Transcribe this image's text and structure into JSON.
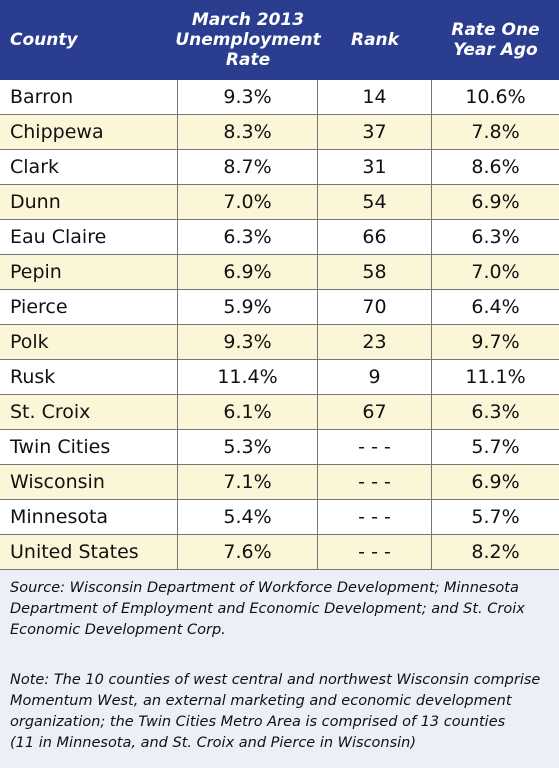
{
  "header": [
    [
      "County"
    ],
    [
      "March 2013",
      "Unemployment",
      "Rate"
    ],
    [
      "Rank"
    ],
    [
      "Rate One",
      "Year Ago"
    ]
  ],
  "rows": [
    [
      "Barron",
      "9.3%",
      "14",
      "10.6%"
    ],
    [
      "Chippewa",
      "8.3%",
      "37",
      "7.8%"
    ],
    [
      "Clark",
      "8.7%",
      "31",
      "8.6%"
    ],
    [
      "Dunn",
      "7.0%",
      "54",
      "6.9%"
    ],
    [
      "Eau Claire",
      "6.3%",
      "66",
      "6.3%"
    ],
    [
      "Pepin",
      "6.9%",
      "58",
      "7.0%"
    ],
    [
      "Pierce",
      "5.9%",
      "70",
      "6.4%"
    ],
    [
      "Polk",
      "9.3%",
      "23",
      "9.7%"
    ],
    [
      "Rusk",
      "11.4%",
      "9",
      "11.1%"
    ],
    [
      "St. Croix",
      "6.1%",
      "67",
      "6.3%"
    ],
    [
      "Twin Cities",
      "5.3%",
      "- - -",
      "5.7%"
    ],
    [
      "Wisconsin",
      "7.1%",
      "- - -",
      "6.9%"
    ],
    [
      "Minnesota",
      "5.4%",
      "- - -",
      "5.7%"
    ],
    [
      "United States",
      "7.6%",
      "- - -",
      "8.2%"
    ]
  ],
  "source": [
    "Source: Wisconsin Department of Workforce Development; Minnesota",
    "Department of Employment and Economic Development; and St. Croix",
    "Economic Development Corp."
  ],
  "note": [
    "Note: The 10 counties of west central and northwest Wisconsin comprise",
    "Momentum West, an external marketing and economic development",
    "organization; the Twin Cities Metro Area is comprised of 13 counties",
    "(11 in Minnesota, and St. Croix and Pierce in Wisconsin)"
  ]
}
